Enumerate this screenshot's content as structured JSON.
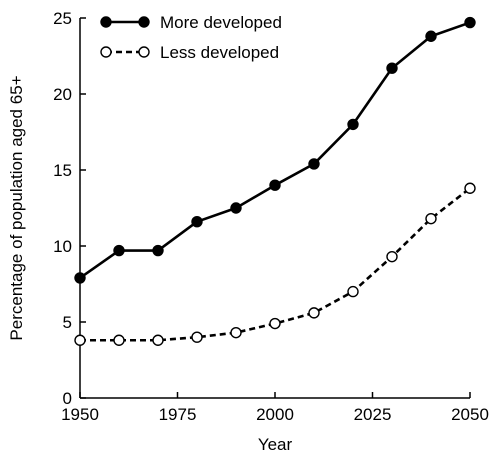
{
  "chart_data": {
    "type": "line",
    "title": "",
    "xlabel": "Year",
    "ylabel": "Percentage of population aged 65+",
    "xlim": [
      1950,
      2050
    ],
    "ylim": [
      0,
      25
    ],
    "xticks": [
      1950,
      1975,
      2000,
      2025,
      2050
    ],
    "yticks": [
      0,
      5,
      10,
      15,
      20,
      25
    ],
    "x": [
      1950,
      1960,
      1970,
      1980,
      1990,
      2000,
      2010,
      2020,
      2030,
      2040,
      2050
    ],
    "grid": false,
    "legend_position": "top-left",
    "series": [
      {
        "name": "More developed",
        "style": "solid",
        "marker": "filled-circle",
        "color": "#000000",
        "values": [
          7.9,
          9.7,
          9.7,
          11.6,
          12.5,
          14.0,
          15.4,
          18.0,
          21.7,
          23.8,
          24.7
        ]
      },
      {
        "name": "Less developed",
        "style": "dashed",
        "marker": "open-circle",
        "color": "#000000",
        "values": [
          3.8,
          3.8,
          3.8,
          4.0,
          4.3,
          4.9,
          5.6,
          7.0,
          9.3,
          11.8,
          13.8
        ]
      }
    ]
  }
}
